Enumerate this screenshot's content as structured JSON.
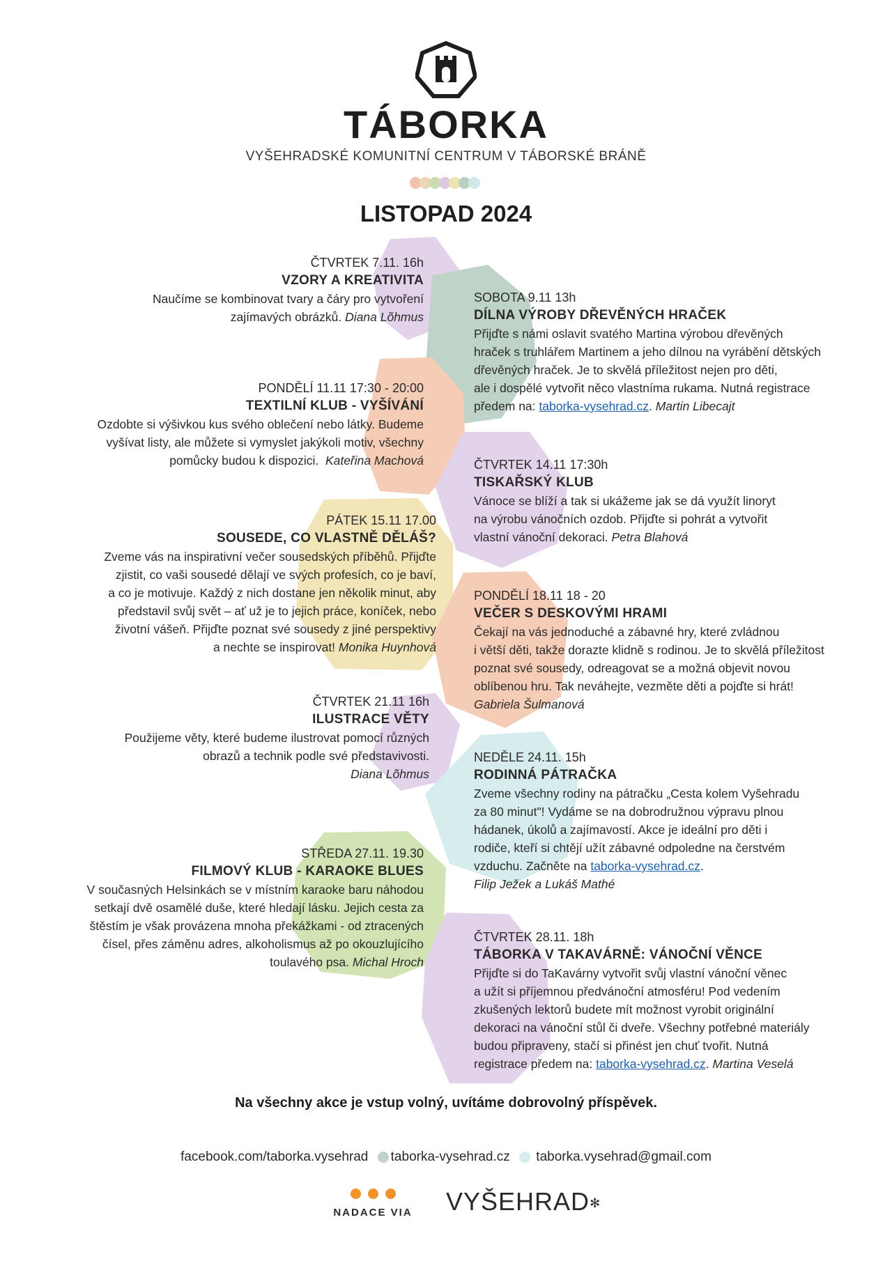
{
  "header": {
    "brand": "TÁBORKA",
    "subtitle": "VYŠEHRADSKÉ KOMUNITNÍ CENTRUM V TÁBORSKÉ BRÁNĚ",
    "month": "LISTOPAD 2024",
    "dot_colors": [
      "#f2c2ad",
      "#e9d9b2",
      "#c9dcb2",
      "#dcc6e0",
      "#ece3ae",
      "#b9cfc2",
      "#cfe8e9"
    ]
  },
  "colors": {
    "lavender": "#e3d3ea",
    "sage": "#bfd3c9",
    "peach": "#f5cdb7",
    "yellow": "#f2e6b8",
    "mint": "#d6eced",
    "green": "#d2e4b4",
    "link": "#1f5fa8"
  },
  "events_left": [
    {
      "date": "ČTVRTEK 7.11. 16h",
      "title": "VZORY A KREATIVITA",
      "lines": [
        "Naučíme se kombinovat tvary a čáry pro vytvoření",
        "zajímavých obrázků."
      ],
      "author": "Diana Lõhmus"
    },
    {
      "date": "PONDĚLÍ 11.11 17:30 - 20:00",
      "title": "TEXTILNÍ KLUB - VYŠÍVÁNÍ",
      "lines": [
        "Ozdobte si výšivkou kus svého oblečení nebo látky. Budeme",
        "vyšívat listy, ale můžete si vymyslet jakýkoli motiv, všechny",
        "pomůcky budou k dispozici."
      ],
      "author": "Kateřina Machová"
    },
    {
      "date": "PÁTEK 15.11 17.00",
      "title": "SOUSEDE, CO VLASTNĚ DĚLÁŠ?",
      "lines": [
        "Zveme vás na inspirativní večer sousedských příběhů. Přijďte",
        "zjistit, co vaši sousedé dělají ve svých profesích, co je baví,",
        "a co je motivuje. Každý z nich dostane jen několik minut, aby",
        "představil svůj svět – ať už je to jejich práce, koníček, nebo",
        "životní vášeň. Přijďte poznat své sousedy z jiné perspektivy",
        "a nechte se inspirovat!"
      ],
      "author": "Monika Huynhová"
    },
    {
      "date": "ČTVRTEK 21.11 16h",
      "title": "ILUSTRACE VĚTY",
      "lines": [
        "Použijeme věty, které budeme ilustrovat pomocí různých",
        "obrazů a technik podle své představivosti."
      ],
      "author": "Diana Lõhmus"
    },
    {
      "date": "STŘEDA 27.11. 19.30",
      "title": "FILMOVÝ KLUB - KARAOKE BLUES",
      "lines": [
        "V současných Helsinkách se v místním karaoke baru náhodou",
        "setkají dvě osamělé duše, které hledají lásku. Jejich cesta za",
        "štěstím je však provázena mnoha překážkami - od ztracených",
        "čísel, přes záměnu adres, alkoholismus až po okouzlujícího",
        "toulavého psa."
      ],
      "author": "Michal Hroch"
    }
  ],
  "events_right": [
    {
      "date": "SOBOTA 9.11 13h",
      "title": "DÍLNA VÝROBY DŘEVĚNÝCH HRAČEK",
      "lines": [
        "Přijďte s námi oslavit svatého Martina výrobou dřevěných",
        "hraček s truhlářem Martinem a jeho dílnou na vyrábění dětských",
        "dřevěných hraček. Je to skvělá příležitost nejen pro děti,",
        "ale i dospělé vytvořit něco vlastníma rukama. Nutná registrace"
      ],
      "last_prefix": "předem na: ",
      "link": "taborka-vysehrad.cz",
      "last_suffix": ". ",
      "author": "Martin Libecajt"
    },
    {
      "date": "ČTVRTEK 14.11 17:30h",
      "title": "TISKAŘSKÝ KLUB",
      "lines": [
        "Vánoce se blíží a tak si ukážeme jak se dá využít linoryt",
        "na výrobu vánočních ozdob. Přijďte si pohrát a vytvořit"
      ],
      "last_prefix": "vlastní vánoční dekoraci. ",
      "author": "Petra Blahová"
    },
    {
      "date": "PONDĚLÍ 18.11 18 - 20",
      "title": "VEČER S DESKOVÝMI HRAMI",
      "lines": [
        "Čekají na vás jednoduché a zábavné hry, které zvládnou",
        "i větší děti, takže dorazte klidně s rodinou. Je to skvělá příležitost",
        "poznat své sousedy, odreagovat se a možná objevit novou",
        "oblíbenou hru. Tak neváhejte, vezměte děti a pojďte si hrát!"
      ],
      "author": "Gabriela Šulmanová"
    },
    {
      "date": "NEDĚLE 24.11. 15h",
      "title": "RODINNÁ PÁTRAČKA",
      "lines": [
        "Zveme všechny rodiny na  pátračku „Cesta kolem Vyšehradu",
        "za 80 minut\"! Vydáme se na dobrodružnou výpravu plnou",
        "hádanek, úkolů a zajímavostí. Akce je ideální pro děti i",
        "rodiče, kteří si chtějí užít zábavné odpoledne na čerstvém"
      ],
      "last_prefix": "vzduchu. Začněte na ",
      "link": "taborka-vysehrad.cz",
      "last_suffix": ".",
      "author": "Filip Ježek a Lukáš Mathé"
    },
    {
      "date": "ČTVRTEK 28.11. 18h",
      "title": "TÁBORKA V TAKAVÁRNĚ: VÁNOČNÍ VĚNCE",
      "lines": [
        "Přijďte si do TaKavárny vytvořit svůj vlastní vánoční věnec",
        "a užít si příjemnou předvánoční atmosféru! Pod vedením",
        "zkušených lektorů budete mít možnost vyrobit originální",
        "dekoraci na vánoční stůl či dveře. Všechny potřebné materiály",
        "budou připraveny, stačí si přinést jen chuť tvořit. Nutná"
      ],
      "last_prefix": "registrace předem na: ",
      "link": "taborka-vysehrad.cz",
      "last_suffix": ". ",
      "author": "Martina Veselá"
    }
  ],
  "footer": {
    "free_entry": "Na všechny akce je vstup volný, uvítáme dobrovolný příspěvek.",
    "facebook": "facebook.com/taborka.vysehrad",
    "web": "taborka-vysehrad.cz",
    "email": "taborka.vysehrad@gmail.com",
    "sponsor1": "NADACE VIA",
    "sponsor2": "VYŠEHRAD"
  }
}
